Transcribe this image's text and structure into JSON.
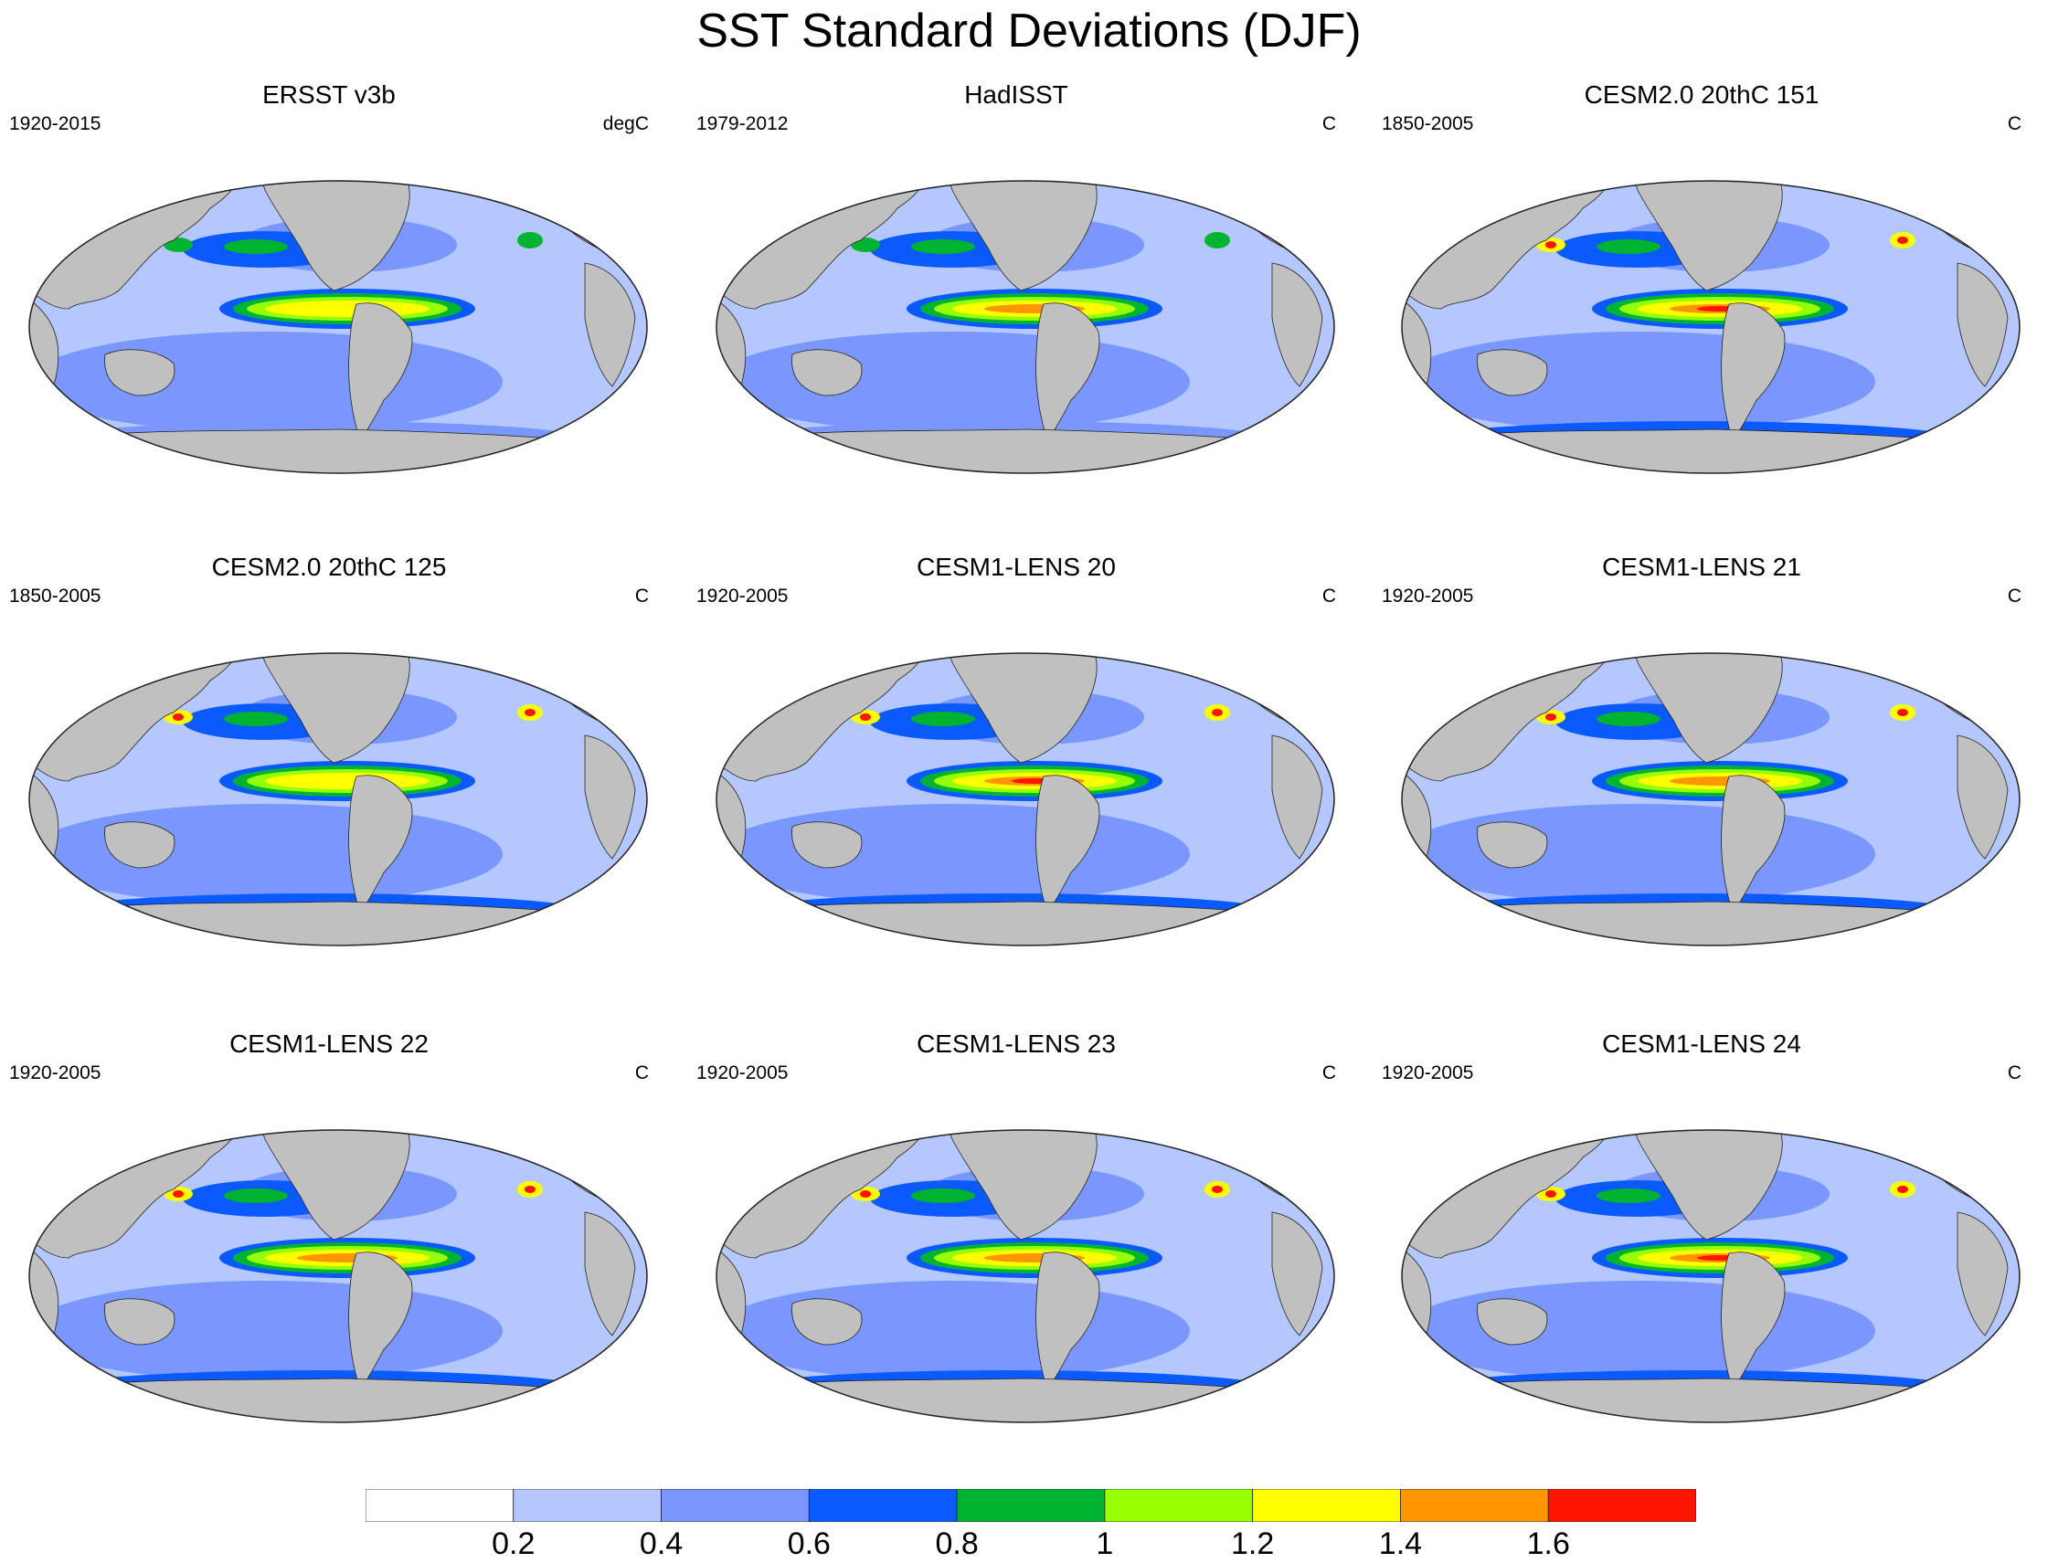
{
  "title": "SST Standard Deviations (DJF)",
  "panels": [
    {
      "title": "ERSST v3b",
      "period": "1920-2015",
      "units": "degC",
      "icon": "pacific-centered-robinson-sst-map",
      "nino_max": 1.2,
      "extratropic_max": 0.8
    },
    {
      "title": "HadISST",
      "period": "1979-2012",
      "units": "C",
      "icon": "pacific-centered-robinson-sst-map",
      "nino_max": 1.4,
      "extratropic_max": 0.8
    },
    {
      "title": "CESM2.0 20thC 151",
      "period": "1850-2005",
      "units": "C",
      "icon": "pacific-centered-robinson-sst-map",
      "nino_max": 1.6,
      "extratropic_max": 1.8
    },
    {
      "title": "CESM2.0 20thC 125",
      "period": "1850-2005",
      "units": "C",
      "icon": "pacific-centered-robinson-sst-map",
      "nino_max": 1.2,
      "extratropic_max": 1.8
    },
    {
      "title": "CESM1-LENS 20",
      "period": "1920-2005",
      "units": "C",
      "icon": "pacific-centered-robinson-sst-map",
      "nino_max": 1.6,
      "extratropic_max": 1.8
    },
    {
      "title": "CESM1-LENS 21",
      "period": "1920-2005",
      "units": "C",
      "icon": "pacific-centered-robinson-sst-map",
      "nino_max": 1.4,
      "extratropic_max": 1.8
    },
    {
      "title": "CESM1-LENS 22",
      "period": "1920-2005",
      "units": "C",
      "icon": "pacific-centered-robinson-sst-map",
      "nino_max": 1.4,
      "extratropic_max": 1.8
    },
    {
      "title": "CESM1-LENS 23",
      "period": "1920-2005",
      "units": "C",
      "icon": "pacific-centered-robinson-sst-map",
      "nino_max": 1.4,
      "extratropic_max": 1.8
    },
    {
      "title": "CESM1-LENS 24",
      "period": "1920-2005",
      "units": "C",
      "icon": "pacific-centered-robinson-sst-map",
      "nino_max": 1.6,
      "extratropic_max": 1.8
    }
  ],
  "colorbar": {
    "labels": [
      "0.2",
      "0.4",
      "0.6",
      "0.8",
      "1",
      "1.2",
      "1.4",
      "1.6"
    ],
    "colors": [
      "#ffffff",
      "#b4c8ff",
      "#7a96ff",
      "#0a5aff",
      "#00b432",
      "#96ff00",
      "#ffff00",
      "#ff9600",
      "#ff1400"
    ]
  },
  "land_color": "#c0c0c0"
}
